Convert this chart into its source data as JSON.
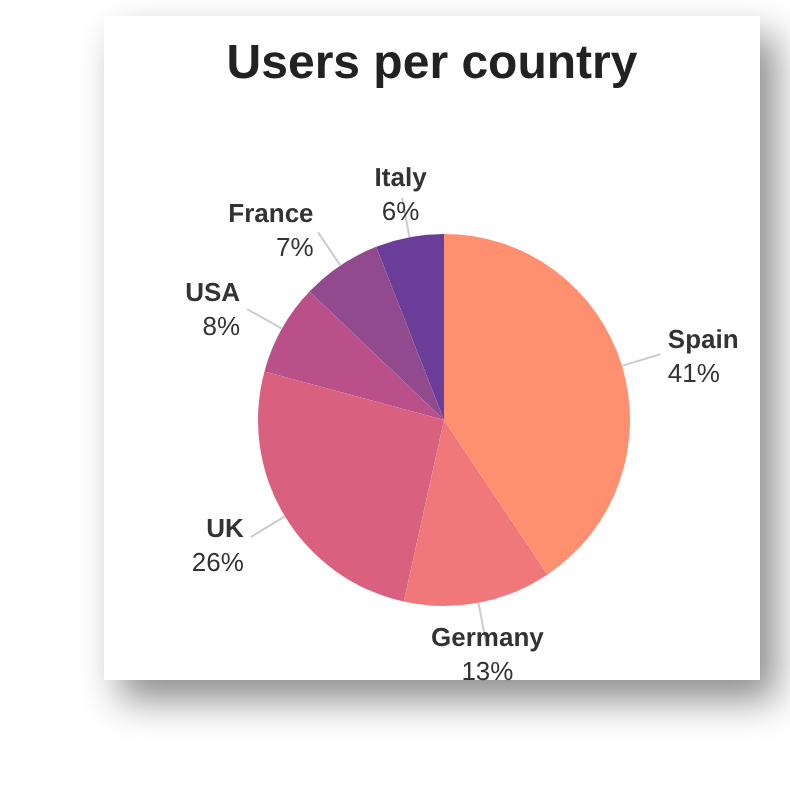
{
  "chart_data": {
    "type": "pie",
    "title": "Users per country",
    "categories": [
      "Spain",
      "Germany",
      "UK",
      "USA",
      "France",
      "Italy"
    ],
    "values": [
      41,
      13,
      26,
      8,
      7,
      6
    ],
    "value_labels": [
      "41%",
      "13%",
      "26%",
      "8%",
      "7%",
      "6%"
    ],
    "colors": [
      "#fe8f6f",
      "#f0787a",
      "#d9607f",
      "#b9508a",
      "#924a8f",
      "#6a3d98"
    ],
    "legend": false
  }
}
